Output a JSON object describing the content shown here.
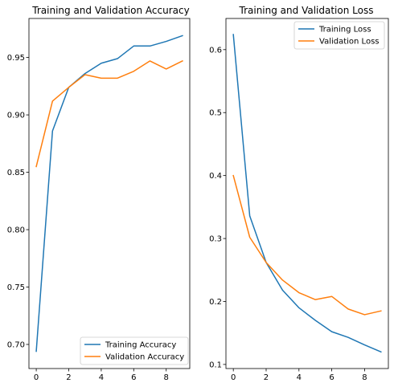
{
  "chart_data": [
    {
      "type": "line",
      "title": "Training and Validation Accuracy",
      "xlabel": "",
      "ylabel": "",
      "xlim": [
        -0.45,
        9.45
      ],
      "ylim": [
        0.679,
        0.984
      ],
      "xticks": [
        0,
        2,
        4,
        6,
        8
      ],
      "xtick_labels": [
        "0",
        "2",
        "4",
        "6",
        "8"
      ],
      "yticks": [
        0.7,
        0.75,
        0.8,
        0.85,
        0.9,
        0.95
      ],
      "ytick_labels": [
        "0.70",
        "0.75",
        "0.80",
        "0.85",
        "0.90",
        "0.95"
      ],
      "legend_position": "lower-right",
      "series": [
        {
          "name": "Training Accuracy",
          "color": "#1f77b4",
          "x": [
            0,
            1,
            2,
            3,
            4,
            5,
            6,
            7,
            8,
            9
          ],
          "values": [
            0.694,
            0.886,
            0.924,
            0.936,
            0.945,
            0.949,
            0.96,
            0.96,
            0.964,
            0.969
          ]
        },
        {
          "name": "Validation Accuracy",
          "color": "#ff7f0e",
          "x": [
            0,
            1,
            2,
            3,
            4,
            5,
            6,
            7,
            8,
            9
          ],
          "values": [
            0.855,
            0.912,
            0.924,
            0.935,
            0.932,
            0.932,
            0.938,
            0.947,
            0.94,
            0.947
          ]
        }
      ]
    },
    {
      "type": "line",
      "title": "Training and Validation Loss",
      "xlabel": "",
      "ylabel": "",
      "xlim": [
        -0.45,
        9.45
      ],
      "ylim": [
        0.0935,
        0.6495
      ],
      "xticks": [
        0,
        2,
        4,
        6,
        8
      ],
      "xtick_labels": [
        "0",
        "2",
        "4",
        "6",
        "8"
      ],
      "yticks": [
        0.1,
        0.2,
        0.3,
        0.4,
        0.5,
        0.6
      ],
      "ytick_labels": [
        "0.1",
        "0.2",
        "0.3",
        "0.4",
        "0.5",
        "0.6"
      ],
      "legend_position": "upper-right",
      "series": [
        {
          "name": "Training Loss",
          "color": "#1f77b4",
          "x": [
            0,
            1,
            2,
            3,
            4,
            5,
            6,
            7,
            8,
            9
          ],
          "values": [
            0.624,
            0.336,
            0.262,
            0.218,
            0.19,
            0.17,
            0.152,
            0.143,
            0.131,
            0.12
          ]
        },
        {
          "name": "Validation Loss",
          "color": "#ff7f0e",
          "x": [
            0,
            1,
            2,
            3,
            4,
            5,
            6,
            7,
            8,
            9
          ],
          "values": [
            0.4,
            0.302,
            0.262,
            0.234,
            0.214,
            0.203,
            0.208,
            0.188,
            0.179,
            0.185
          ]
        }
      ]
    }
  ]
}
